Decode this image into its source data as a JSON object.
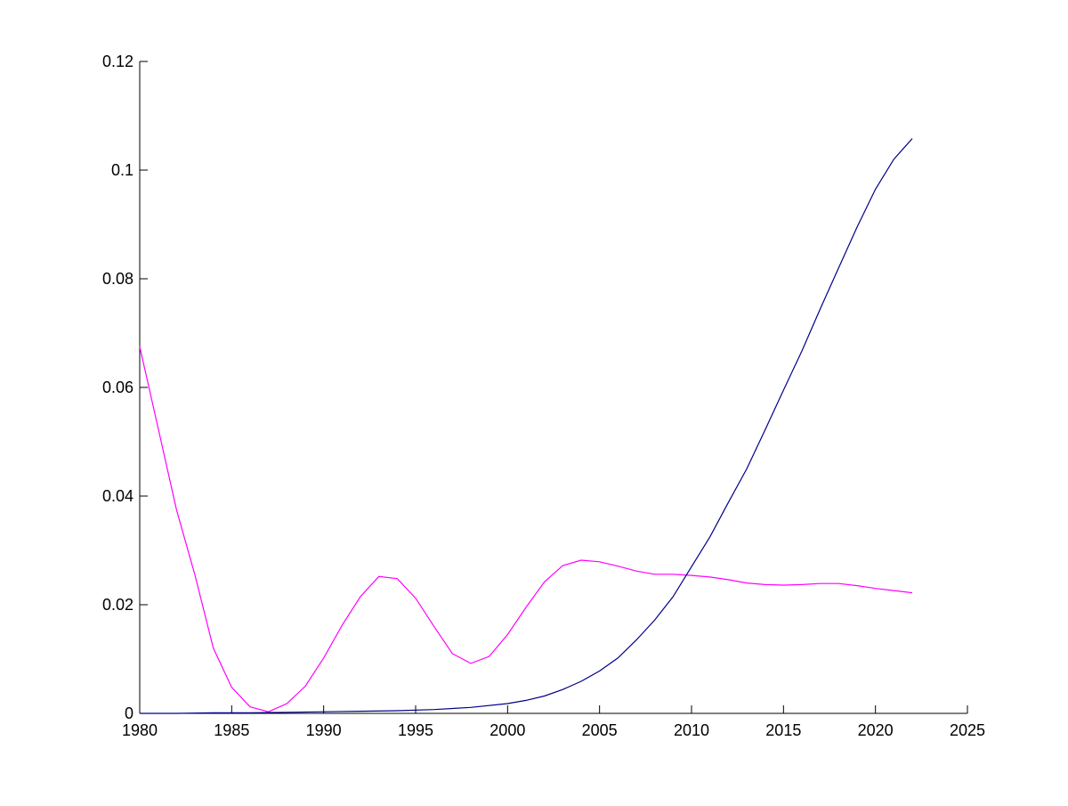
{
  "chart_data": {
    "type": "line",
    "title": "",
    "xlabel": "",
    "ylabel": "",
    "xlim": [
      1980,
      2025
    ],
    "ylim": [
      0,
      0.12
    ],
    "xticks": [
      1980,
      1985,
      1990,
      1995,
      2000,
      2005,
      2010,
      2015,
      2020,
      2025
    ],
    "xtick_labels": [
      "1980",
      "1985",
      "1990",
      "1995",
      "2000",
      "2005",
      "2010",
      "2015",
      "2020",
      "2025"
    ],
    "yticks": [
      0,
      0.02,
      0.04,
      0.06,
      0.08,
      0.1,
      0.12
    ],
    "ytick_labels": [
      "0",
      "0.02",
      "0.04",
      "0.06",
      "0.08",
      "0.1",
      "0.12"
    ],
    "grid": false,
    "legend": "none",
    "series": [
      {
        "color": "#ff00ff",
        "x": [
          1980,
          1981,
          1982,
          1983,
          1984,
          1985,
          1986,
          1987,
          1988,
          1989,
          1990,
          1991,
          1992,
          1993,
          1994,
          1995,
          1996,
          1997,
          1998,
          1999,
          2000,
          2001,
          2002,
          2003,
          2004,
          2005,
          2006,
          2007,
          2008,
          2009,
          2010,
          2011,
          2012,
          2013,
          2014,
          2015,
          2016,
          2017,
          2018,
          2019,
          2020,
          2021,
          2022
        ],
        "y": [
          0.0675,
          0.0525,
          0.0375,
          0.0255,
          0.012,
          0.0048,
          0.0012,
          0.0003,
          0.0018,
          0.005,
          0.0102,
          0.0162,
          0.0215,
          0.0252,
          0.0248,
          0.0212,
          0.016,
          0.011,
          0.0092,
          0.0105,
          0.0145,
          0.0195,
          0.0242,
          0.0272,
          0.0282,
          0.0279,
          0.0271,
          0.0262,
          0.0256,
          0.0256,
          0.0254,
          0.0251,
          0.0246,
          0.024,
          0.0237,
          0.0236,
          0.0237,
          0.0239,
          0.0239,
          0.0235,
          0.023,
          0.0226,
          0.0222
        ]
      },
      {
        "color": "#00008b",
        "x": [
          1980,
          1982,
          1984,
          1986,
          1988,
          1990,
          1992,
          1994,
          1996,
          1998,
          2000,
          2001,
          2002,
          2003,
          2004,
          2005,
          2006,
          2007,
          2008,
          2009,
          2010,
          2011,
          2012,
          2013,
          2014,
          2015,
          2016,
          2017,
          2018,
          2019,
          2020,
          2021,
          2022
        ],
        "y": [
          0.0,
          0.0,
          0.0001,
          0.0001,
          0.0002,
          0.0003,
          0.0004,
          0.0005,
          0.0007,
          0.0011,
          0.0018,
          0.0024,
          0.0032,
          0.0044,
          0.0059,
          0.0078,
          0.0102,
          0.0135,
          0.0172,
          0.0215,
          0.027,
          0.0325,
          0.0388,
          0.045,
          0.0522,
          0.0595,
          0.0667,
          0.0745,
          0.082,
          0.0895,
          0.0965,
          0.102,
          0.1058
        ]
      }
    ]
  }
}
